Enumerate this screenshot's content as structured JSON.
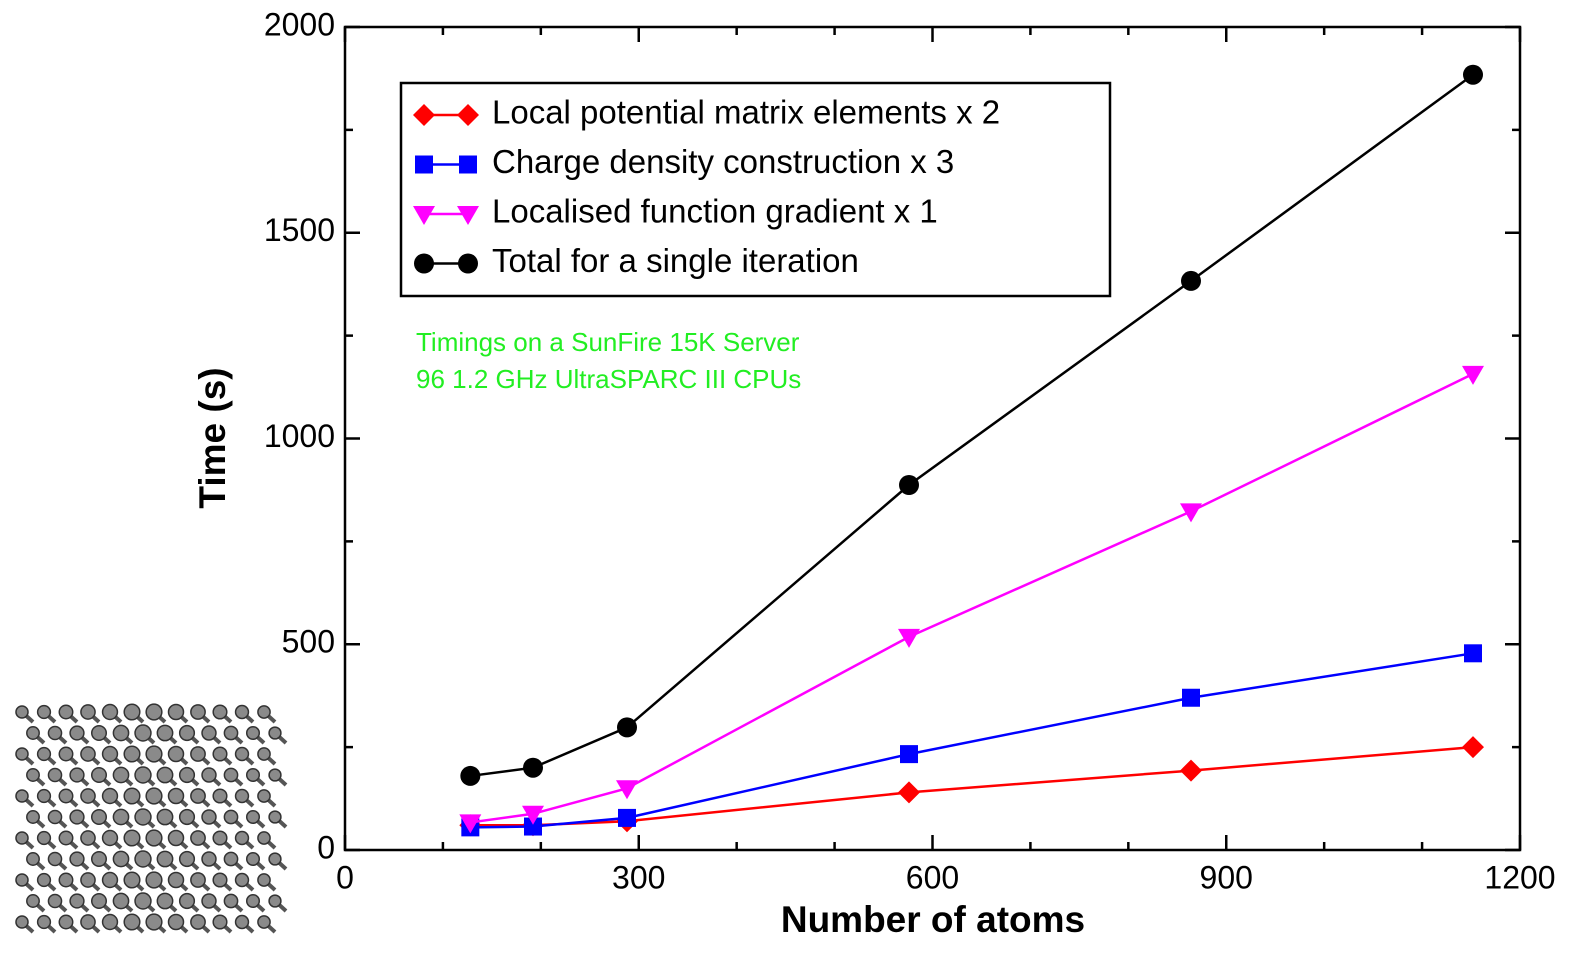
{
  "chart_data": {
    "type": "line",
    "x_label": "Number of atoms",
    "y_label": "Time (s)",
    "x": [
      128,
      192,
      288,
      576,
      864,
      1152
    ],
    "series": [
      {
        "name": "Local potential matrix elements x 2",
        "color": "#ff0000",
        "marker": "diamond",
        "values": [
          60,
          60,
          70,
          140,
          193,
          250
        ]
      },
      {
        "name": "Charge density construction x 3",
        "color": "#0000ff",
        "marker": "square",
        "values": [
          55,
          57,
          78,
          233,
          370,
          478
        ]
      },
      {
        "name": "Localised function gradient x 1",
        "color": "#ff00ff",
        "marker": "triangle-down",
        "values": [
          67,
          88,
          150,
          518,
          823,
          1157
        ]
      },
      {
        "name": "Total for a single iteration",
        "color": "#000000",
        "marker": "circle",
        "values": [
          180,
          200,
          298,
          887,
          1383,
          1884
        ]
      }
    ],
    "xlim": [
      0,
      1200
    ],
    "xticks": [
      0,
      300,
      600,
      900,
      1200
    ],
    "xminorticks": [
      100,
      200,
      400,
      500,
      700,
      800,
      1000,
      1100
    ],
    "ylim": [
      0,
      2000
    ],
    "yticks": [
      0,
      500,
      1000,
      1500,
      2000
    ],
    "yminorticks": [
      250,
      750,
      1250,
      1750
    ],
    "annotations": [
      "Timings on a SunFire 15K Server",
      "96 1.2 GHz UltraSPARC III CPUs"
    ],
    "legend": "upper left"
  }
}
